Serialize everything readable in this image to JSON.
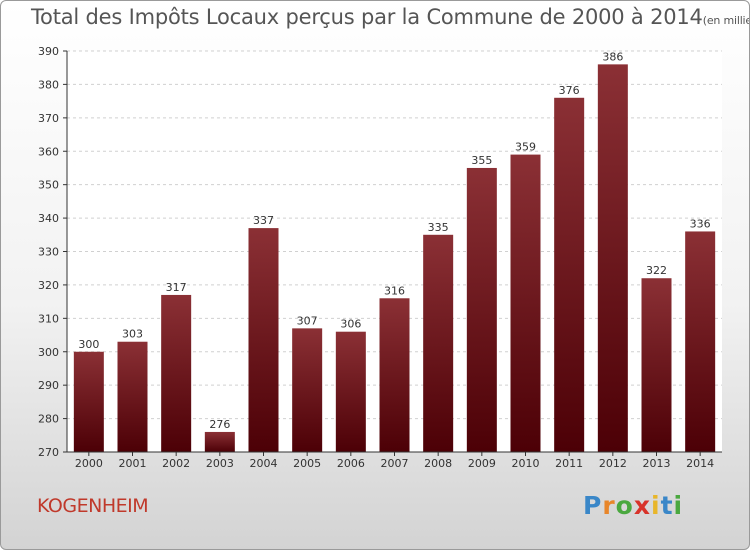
{
  "title": "Total des Impôts Locaux perçus par la Commune de 2000 à 2014",
  "unit_note": "(en milliers d'€)",
  "commune": "KOGENHEIM",
  "logo": {
    "letters": [
      "P",
      "r",
      "o",
      "x",
      "i",
      "t",
      "i"
    ],
    "colors": [
      "#3a87c8",
      "#e8862a",
      "#4aa83f",
      "#d8332a",
      "#e8b62a",
      "#3a87c8",
      "#4aa83f"
    ]
  },
  "colors": {
    "bar_top": "#8b3035",
    "bar_bottom": "#4c0006",
    "grid": "#d0d0d0",
    "axis": "#333333"
  },
  "chart_data": {
    "type": "bar",
    "title": "Total des Impôts Locaux perçus par la Commune de 2000 à 2014",
    "xlabel": "",
    "ylabel": "",
    "categories": [
      "2000",
      "2001",
      "2002",
      "2003",
      "2004",
      "2005",
      "2006",
      "2007",
      "2008",
      "2009",
      "2010",
      "2011",
      "2012",
      "2013",
      "2014"
    ],
    "values": [
      300,
      303,
      317,
      276,
      337,
      307,
      306,
      316,
      335,
      355,
      359,
      376,
      386,
      322,
      336
    ],
    "ylim": [
      270,
      390
    ],
    "yticks": [
      270,
      280,
      290,
      300,
      310,
      320,
      330,
      340,
      350,
      360,
      370,
      380,
      390
    ],
    "grid": true
  }
}
